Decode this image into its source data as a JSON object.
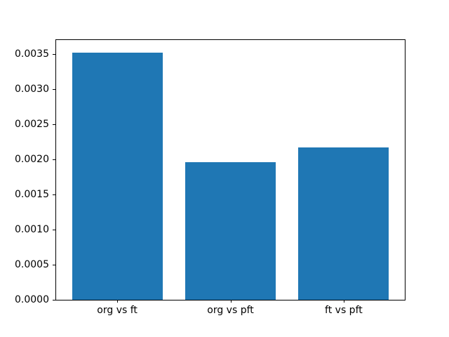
{
  "chart_data": {
    "type": "bar",
    "categories": [
      "org vs ft",
      "org vs pft",
      "ft vs pft"
    ],
    "values": [
      0.00352,
      0.00196,
      0.00217
    ],
    "x_positions": [
      0,
      1,
      2
    ],
    "title": "",
    "xlabel": "",
    "ylabel": "",
    "xlim": [
      -0.54,
      2.54
    ],
    "ylim": [
      0,
      0.0037
    ],
    "yticks": [
      0.0,
      0.0005,
      0.001,
      0.0015,
      0.002,
      0.0025,
      0.003,
      0.0035
    ],
    "ytick_labels": [
      "0.0000",
      "0.0005",
      "0.0010",
      "0.0015",
      "0.0020",
      "0.0025",
      "0.0030",
      "0.0035"
    ],
    "bar_width_fraction": 0.8,
    "bar_color": "#1f77b4",
    "grid": false,
    "legend": null,
    "background_color": "#ffffff",
    "spine_color": "#000000",
    "tick_color": "#000000"
  }
}
